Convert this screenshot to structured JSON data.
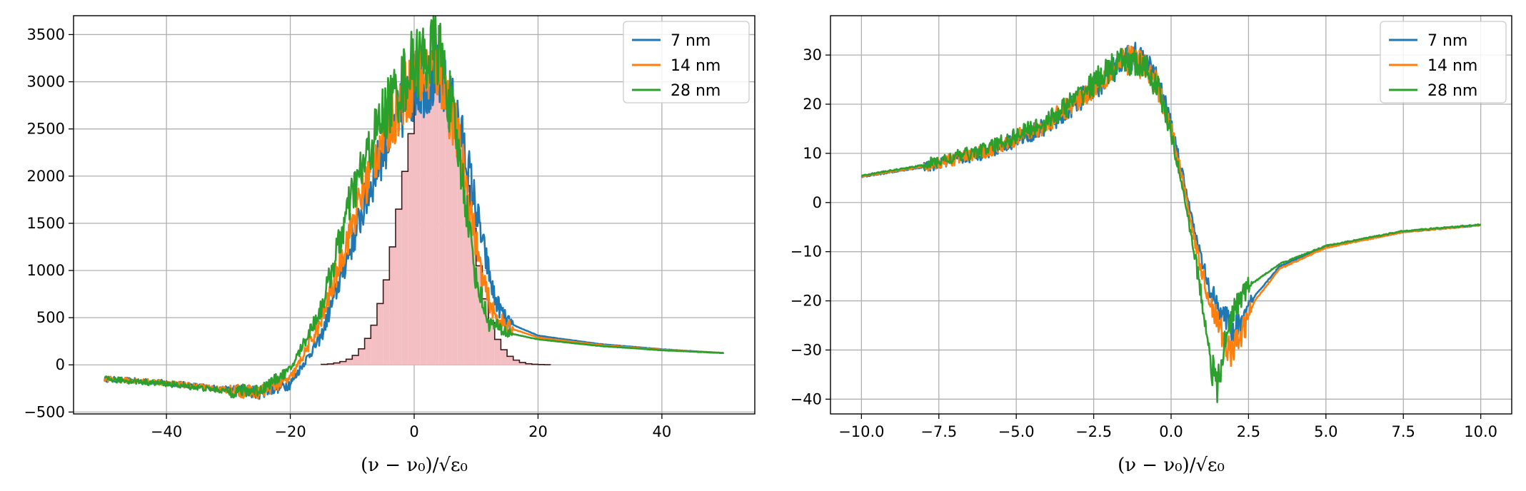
{
  "chart_data": [
    {
      "type": "line",
      "xlabel": "(ν − ν₀)/√ε₀",
      "ylabel": "",
      "xlim": [
        -55,
        55
      ],
      "ylim": [
        -520,
        3700
      ],
      "xticks": [
        -40,
        -20,
        0,
        20,
        40
      ],
      "xtick_labels": [
        "−40",
        "−20",
        "0",
        "20",
        "40"
      ],
      "yticks": [
        -500,
        0,
        500,
        1000,
        1500,
        2000,
        2500,
        3000,
        3500
      ],
      "ytick_labels": [
        "−500",
        "0",
        "500",
        "1000",
        "1500",
        "2000",
        "2500",
        "3000",
        "3500"
      ],
      "grid": true,
      "legend_position": "top-right",
      "histogram": {
        "fill_color": "#f4bfc2",
        "edge_color": "#3a1a1a",
        "bin_edges": [
          -15,
          -14,
          -13,
          -12,
          -11,
          -10,
          -9,
          -8,
          -7,
          -6,
          -5,
          -4,
          -3,
          -2,
          -1,
          0,
          1,
          2,
          3,
          4,
          5,
          6,
          7,
          8,
          9,
          10,
          11,
          12,
          13,
          14,
          15,
          16,
          17,
          18,
          19,
          20,
          21,
          22
        ],
        "counts": [
          5,
          10,
          20,
          35,
          60,
          100,
          170,
          280,
          420,
          650,
          900,
          1250,
          1650,
          2050,
          2450,
          2800,
          3000,
          3050,
          3100,
          3050,
          2950,
          2700,
          2350,
          1900,
          1450,
          1050,
          700,
          450,
          270,
          160,
          90,
          50,
          25,
          12,
          6,
          3,
          1
        ]
      },
      "series": [
        {
          "name": "7 nm",
          "color": "#1f77b4",
          "keypoints": [
            [
              -50,
              -150
            ],
            [
              -40,
              -190
            ],
            [
              -30,
              -260
            ],
            [
              -25,
              -290
            ],
            [
              -20,
              -200
            ],
            [
              -15,
              300
            ],
            [
              -10,
              1300
            ],
            [
              -5,
              2300
            ],
            [
              0,
              2950
            ],
            [
              4,
              3050
            ],
            [
              7,
              2600
            ],
            [
              9,
              2000
            ],
            [
              11,
              1300
            ],
            [
              13,
              700
            ],
            [
              15,
              450
            ],
            [
              20,
              310
            ],
            [
              30,
              220
            ],
            [
              40,
              165
            ],
            [
              50,
              125
            ]
          ]
        },
        {
          "name": "14 nm",
          "color": "#ff7f0e",
          "keypoints": [
            [
              -50,
              -150
            ],
            [
              -40,
              -190
            ],
            [
              -30,
              -270
            ],
            [
              -25,
              -290
            ],
            [
              -20,
              -150
            ],
            [
              -15,
              450
            ],
            [
              -10,
              1500
            ],
            [
              -5,
              2450
            ],
            [
              0,
              3050
            ],
            [
              4,
              3150
            ],
            [
              7,
              2400
            ],
            [
              9,
              1700
            ],
            [
              11,
              900
            ],
            [
              13,
              520
            ],
            [
              15,
              400
            ],
            [
              20,
              290
            ],
            [
              30,
              210
            ],
            [
              40,
              160
            ],
            [
              50,
              125
            ]
          ]
        },
        {
          "name": "28 nm",
          "color": "#2ca02c",
          "keypoints": [
            [
              -50,
              -150
            ],
            [
              -40,
              -200
            ],
            [
              -30,
              -280
            ],
            [
              -25,
              -270
            ],
            [
              -20,
              -50
            ],
            [
              -15,
              600
            ],
            [
              -10,
              1800
            ],
            [
              -5,
              2650
            ],
            [
              0,
              3200
            ],
            [
              4,
              3350
            ],
            [
              6,
              2700
            ],
            [
              8,
              1900
            ],
            [
              10,
              900
            ],
            [
              12,
              450
            ],
            [
              15,
              340
            ],
            [
              20,
              270
            ],
            [
              30,
              200
            ],
            [
              40,
              155
            ],
            [
              50,
              125
            ]
          ]
        }
      ]
    },
    {
      "type": "line",
      "xlabel": "(ν − ν₀)/√ε₀",
      "ylabel": "",
      "xlim": [
        -11,
        11
      ],
      "ylim": [
        -43,
        38
      ],
      "xticks": [
        -10,
        -7.5,
        -5,
        -2.5,
        0,
        2.5,
        5,
        7.5,
        10
      ],
      "xtick_labels": [
        "−10.0",
        "−7.5",
        "−5.0",
        "−2.5",
        "0.0",
        "2.5",
        "5.0",
        "7.5",
        "10.0"
      ],
      "yticks": [
        -40,
        -30,
        -20,
        -10,
        0,
        10,
        20,
        30
      ],
      "ytick_labels": [
        "−40",
        "−30",
        "−20",
        "−10",
        "0",
        "10",
        "20",
        "30"
      ],
      "grid": true,
      "legend_position": "top-right",
      "series": [
        {
          "name": "7 nm",
          "color": "#1f77b4",
          "keypoints": [
            [
              -10,
              5.2
            ],
            [
              -8,
              7.2
            ],
            [
              -6,
              10.2
            ],
            [
              -4,
              15.5
            ],
            [
              -3,
              20.5
            ],
            [
              -2,
              26
            ],
            [
              -1.2,
              30
            ],
            [
              -0.8,
              28
            ],
            [
              -0.4,
              24
            ],
            [
              0,
              16
            ],
            [
              0.4,
              5
            ],
            [
              0.8,
              -7
            ],
            [
              1.2,
              -17
            ],
            [
              1.6,
              -22
            ],
            [
              2.0,
              -26
            ],
            [
              2.3,
              -25
            ],
            [
              2.7,
              -19
            ],
            [
              3.5,
              -13
            ],
            [
              5,
              -9
            ],
            [
              7.5,
              -6
            ],
            [
              10,
              -4.6
            ]
          ]
        },
        {
          "name": "14 nm",
          "color": "#ff7f0e",
          "keypoints": [
            [
              -10,
              5.3
            ],
            [
              -8,
              7.3
            ],
            [
              -6,
              10.4
            ],
            [
              -4,
              16
            ],
            [
              -3,
              21
            ],
            [
              -2,
              26.5
            ],
            [
              -1.3,
              29.5
            ],
            [
              -0.8,
              27.5
            ],
            [
              -0.4,
              23
            ],
            [
              0,
              15
            ],
            [
              0.4,
              4
            ],
            [
              0.8,
              -9
            ],
            [
              1.2,
              -19
            ],
            [
              1.6,
              -26
            ],
            [
              1.9,
              -30.5
            ],
            [
              2.2,
              -28
            ],
            [
              2.7,
              -20
            ],
            [
              3.5,
              -13.5
            ],
            [
              5,
              -9.2
            ],
            [
              7.5,
              -6
            ],
            [
              10,
              -4.6
            ]
          ]
        },
        {
          "name": "28 nm",
          "color": "#2ca02c",
          "keypoints": [
            [
              -10,
              5.5
            ],
            [
              -8,
              7.6
            ],
            [
              -6,
              10.8
            ],
            [
              -4,
              16.5
            ],
            [
              -3,
              21.5
            ],
            [
              -2,
              27
            ],
            [
              -1.4,
              29
            ],
            [
              -0.8,
              27
            ],
            [
              -0.4,
              23
            ],
            [
              0,
              14
            ],
            [
              0.4,
              2
            ],
            [
              0.8,
              -12
            ],
            [
              1.1,
              -24
            ],
            [
              1.3,
              -33
            ],
            [
              1.5,
              -38
            ],
            [
              1.7,
              -30
            ],
            [
              2.0,
              -22
            ],
            [
              2.5,
              -17
            ],
            [
              3.5,
              -12.5
            ],
            [
              5,
              -8.8
            ],
            [
              7.5,
              -5.8
            ],
            [
              10,
              -4.5
            ]
          ]
        }
      ]
    }
  ]
}
